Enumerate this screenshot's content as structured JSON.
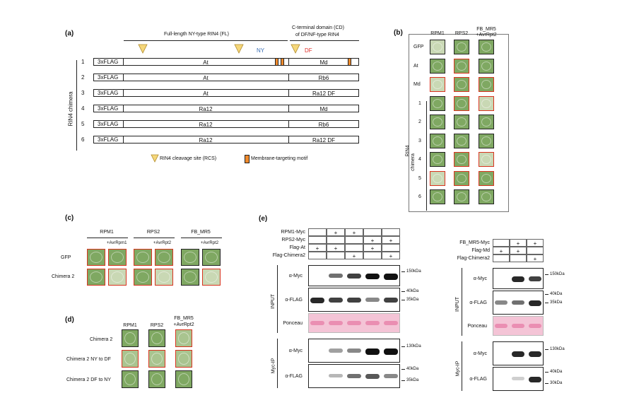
{
  "panel_a": {
    "label": "(a)",
    "header_fl": "Full-length NY-type RIN4 (FL)",
    "header_cd_1": "C-terminal domain (CD)",
    "header_cd_2": "of DF/NF-type RIN4",
    "ny_label": "NY",
    "df_label": "DF",
    "side_label": "RIN4 chimera",
    "rows": [
      {
        "num": "1",
        "tag": "3xFLAG",
        "fl": "At",
        "cd": "Md"
      },
      {
        "num": "2",
        "tag": "3xFLAG",
        "fl": "At",
        "cd": "Rb6"
      },
      {
        "num": "3",
        "tag": "3xFLAG",
        "fl": "At",
        "cd": "Ra12 DF"
      },
      {
        "num": "4",
        "tag": "3xFLAG",
        "fl": "Ra12",
        "cd": "Md"
      },
      {
        "num": "5",
        "tag": "3xFLAG",
        "fl": "Ra12",
        "cd": "Rb6"
      },
      {
        "num": "6",
        "tag": "3xFLAG",
        "fl": "Ra12",
        "cd": "Ra12 DF"
      }
    ],
    "legend_rcs": "RIN4 cleavage site (RCS)",
    "legend_mem": "Membrane-targeting motif",
    "colors": {
      "rcs": "#f5d77a",
      "membrane": "#f08a2c",
      "ny": "#3a6fb5",
      "df": "#e0302a"
    }
  },
  "panel_b": {
    "label": "(b)",
    "columns": [
      "RPM1",
      "RPS2",
      "FB_MR5"
    ],
    "column3_sub": "+AvrRpt2",
    "rows": [
      "GFP",
      "At",
      "Md",
      "1",
      "2",
      "3",
      "4",
      "5",
      "6"
    ],
    "side_label_1": "RIN4",
    "side_label_2": "chimera"
  },
  "panel_c": {
    "label": "(c)",
    "groups": [
      "RPM1",
      "RPS2",
      "FB_MR5"
    ],
    "subs": [
      "+AvrRpm1",
      "+AvrRpt2",
      "+AvrRpt2"
    ],
    "rows": [
      "GFP",
      "Chimera 2"
    ]
  },
  "panel_d": {
    "label": "(d)",
    "columns": [
      "RPM1",
      "RPS2",
      "FB_MR5"
    ],
    "column3_sub": "+AvrRpt2",
    "rows": [
      "Chimera 2",
      "Chimera 2 NY to DF",
      "Chimera 2 DF to NY"
    ]
  },
  "panel_e": {
    "label": "(e)",
    "left": {
      "rows": [
        "RPM1-Myc",
        "RPS2-Myc",
        "Flag-At",
        "Flag-Chimera2"
      ],
      "signs": [
        [
          "",
          "+",
          "+",
          "",
          ""
        ],
        [
          "",
          "",
          "",
          "+",
          "+"
        ],
        [
          "+",
          "+",
          "",
          "+",
          ""
        ],
        [
          "",
          "",
          "+",
          "",
          "+"
        ]
      ],
      "blots": [
        "α-Myc",
        "α-FLAG",
        "Ponceau",
        "α-Myc",
        "α-FLAG"
      ],
      "group_input": "INPUT",
      "group_ip": "Myc-IP",
      "markers": [
        "150kDa",
        "40kDa",
        "35kDa",
        "130kDa",
        "40kDa",
        "35kDa"
      ]
    },
    "right": {
      "rows": [
        "FB_MR5-Myc",
        "Flag-Md",
        "Flag-Chimera2"
      ],
      "signs": [
        [
          "",
          "+",
          "+"
        ],
        [
          "+",
          "+",
          ""
        ],
        [
          "",
          "",
          "+"
        ]
      ],
      "blots": [
        "α-Myc",
        "α-FLAG",
        "Ponceau",
        "α-Myc",
        "α-FLAG"
      ],
      "group_input": "INPUT",
      "group_ip": "Myc-IP",
      "markers": [
        "150kDa",
        "40kDa",
        "35kDa",
        "130kDa",
        "40kDa",
        "30kDa"
      ]
    }
  }
}
